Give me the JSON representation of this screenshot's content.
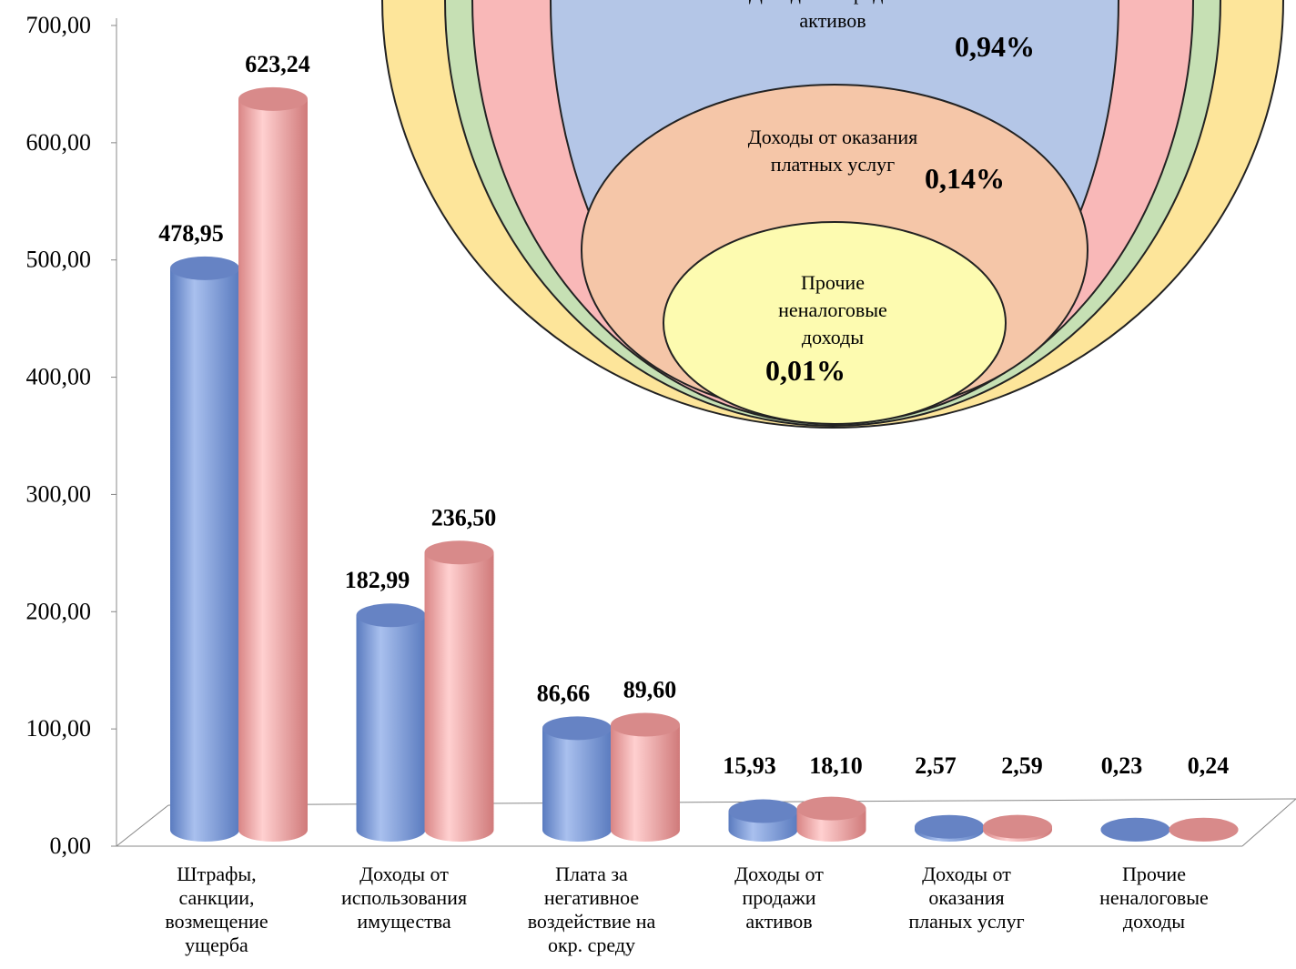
{
  "chart_data": [
    {
      "type": "bar",
      "categories": [
        "Штрафы,\nсанкции,\nвозмещение\nущерба",
        "Доходы от\nиспользования\nимущества",
        "Плата за\nнегативное\nвоздействие на\nокр. среду",
        "Доходы от\nпродажи\nактивов",
        "Доходы от\nоказания\nпланых услуг",
        "Прочие\nненалоговые\nдоходы"
      ],
      "series": [
        {
          "color": "#7f9fdc",
          "values": [
            478.95,
            182.99,
            86.66,
            15.93,
            2.57,
            0.23
          ],
          "value_labels": [
            "478,95",
            "182,99",
            "86,66",
            "15,93",
            "2,57",
            "0,23"
          ]
        },
        {
          "color": "#f4a7a7",
          "values": [
            623.24,
            236.5,
            89.6,
            18.1,
            2.59,
            0.24
          ],
          "value_labels": [
            "623,24",
            "236,50",
            "89,60",
            "18,10",
            "2,59",
            "0,24"
          ]
        }
      ],
      "ylim": [
        0,
        700
      ],
      "yticks": [
        {
          "value": 0,
          "label": "0,00"
        },
        {
          "value": 100,
          "label": "100,00"
        },
        {
          "value": 200,
          "label": "200,00"
        },
        {
          "value": 300,
          "label": "300,00"
        },
        {
          "value": 400,
          "label": "400,00"
        },
        {
          "value": 500,
          "label": "500,00"
        },
        {
          "value": 600,
          "label": "600,00"
        },
        {
          "value": 700,
          "label": "700,00"
        }
      ]
    },
    {
      "type": "nested",
      "categories": [
        "Доходы от продажи\nактивов",
        "Доходы от оказания\nплатных услуг",
        "Прочие\nненалоговые\nдоходы"
      ],
      "values": [
        0.94,
        0.14,
        0.01
      ],
      "value_labels": [
        "0,94%",
        "0,14%",
        "0,01%"
      ],
      "colors": [
        "#b4c6e7",
        "#f5c6a8",
        "#fdfbb0"
      ]
    }
  ]
}
